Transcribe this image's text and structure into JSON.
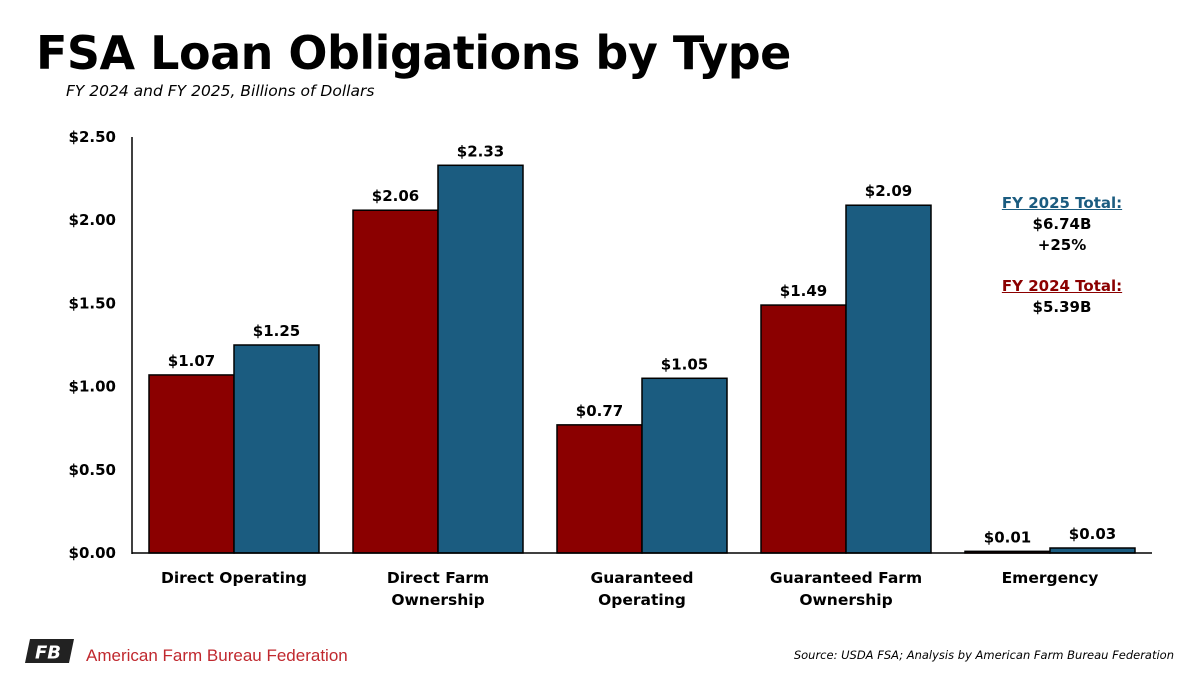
{
  "chart_data": {
    "type": "bar",
    "title": "FSA Loan Obligations by Type",
    "subtitle": "FY 2024 and FY 2025, Billions of Dollars",
    "categories": [
      "Direct Operating",
      "Direct Farm Ownership",
      "Guaranteed Operating",
      "Guaranteed Farm Ownership",
      "Emergency"
    ],
    "category_lines": [
      [
        "Direct Operating"
      ],
      [
        "Direct Farm",
        "Ownership"
      ],
      [
        "Guaranteed",
        "Operating"
      ],
      [
        "Guaranteed Farm",
        "Ownership"
      ],
      [
        "Emergency"
      ]
    ],
    "series": [
      {
        "color": "#8b0000",
        "values": [
          1.07,
          2.06,
          0.77,
          1.49,
          0.01
        ],
        "labels": [
          "$1.07",
          "$2.06",
          "$0.77",
          "$1.49",
          "$0.01"
        ]
      },
      {
        "color": "#1b5c80",
        "values": [
          1.25,
          2.33,
          1.05,
          2.09,
          0.03
        ],
        "labels": [
          "$1.25",
          "$2.33",
          "$1.05",
          "$2.09",
          "$0.03"
        ]
      }
    ],
    "ylim": [
      0,
      2.5
    ],
    "yticks": [
      0,
      0.5,
      1.0,
      1.5,
      2.0,
      2.5
    ],
    "ytick_labels": [
      "$0.00",
      "$0.50",
      "$1.00",
      "$1.50",
      "$2.00",
      "$2.50"
    ],
    "grid": false,
    "legend": "none"
  },
  "annotations": {
    "fy2025_head": "FY 2025 Total:",
    "fy2025_value": "$6.74B",
    "fy2025_change": "+25%",
    "fy2025_color": "#1b5c80",
    "fy2024_head": "FY 2024 Total:",
    "fy2024_value": "$5.39B",
    "fy2024_color": "#8b0000"
  },
  "footer": {
    "logo_icon": "fb-logo-icon",
    "logo_text": "FB",
    "brand": "American Farm Bureau Federation",
    "brand_color": "#c0282e",
    "source": "Source: USDA FSA; Analysis by American Farm Bureau Federation"
  }
}
